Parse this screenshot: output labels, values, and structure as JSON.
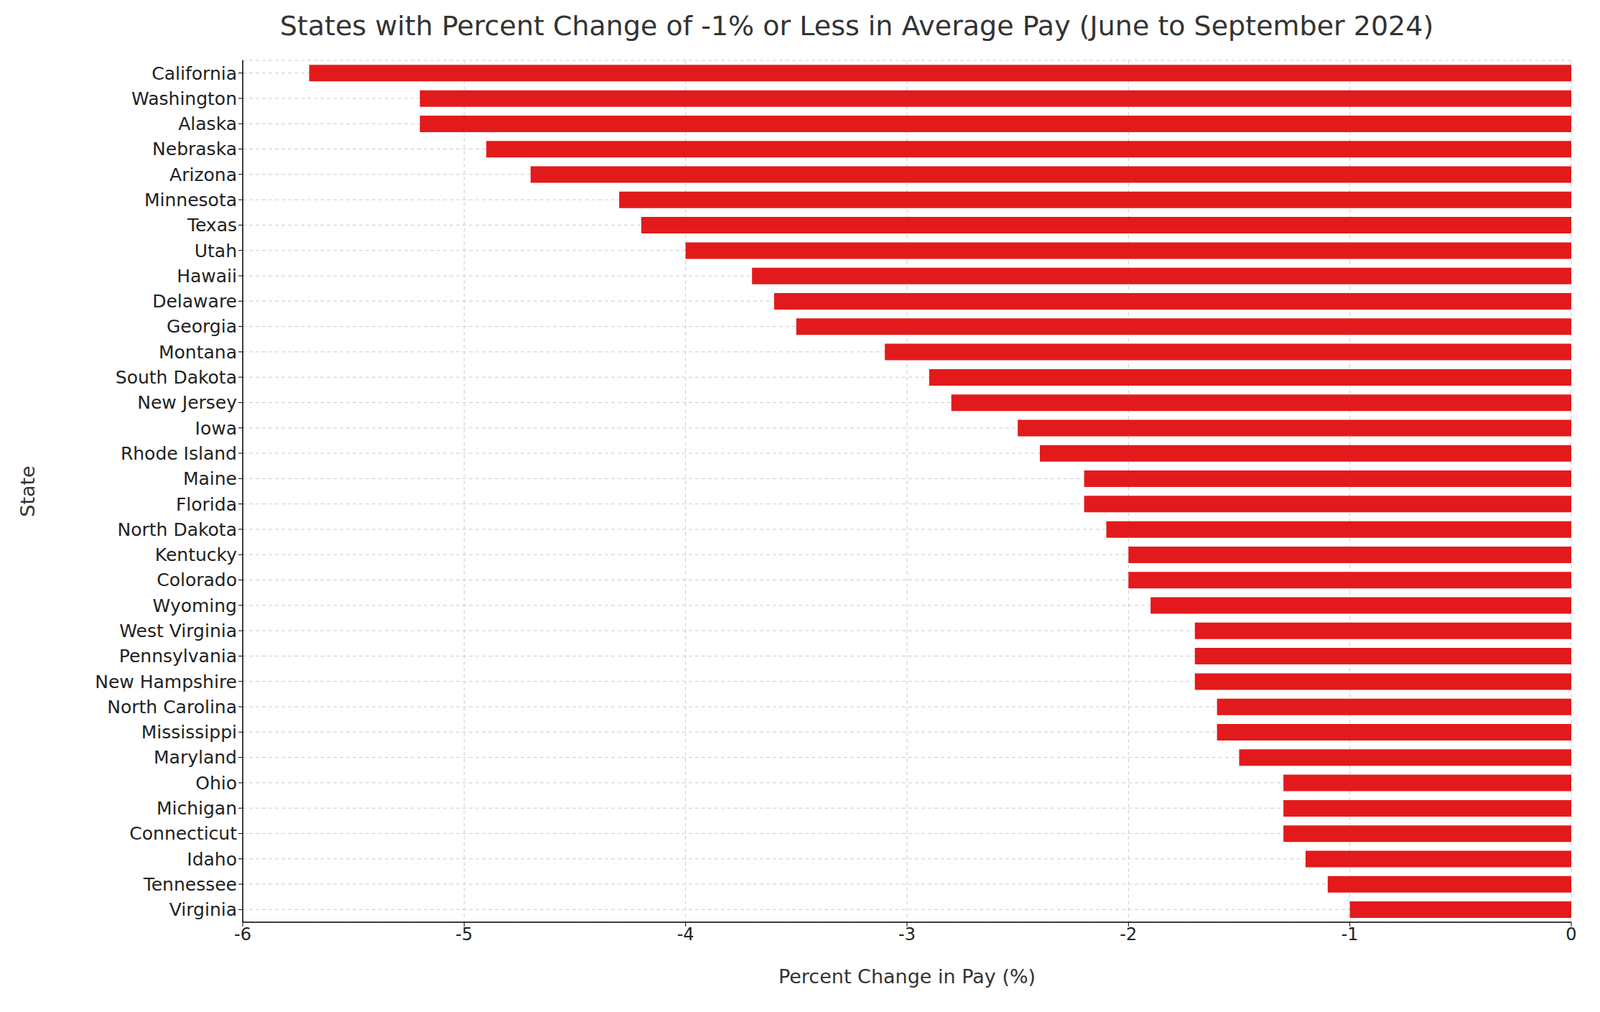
{
  "chart_data": {
    "type": "bar",
    "orientation": "horizontal",
    "title": "States with Percent Change of -1% or Less in Average Pay (June to September 2024)",
    "x_label": "Percent Change in Pay (%)",
    "y_label": "State",
    "categories": [
      "California",
      "Washington",
      "Alaska",
      "Nebraska",
      "Arizona",
      "Minnesota",
      "Texas",
      "Utah",
      "Hawaii",
      "Delaware",
      "Georgia",
      "Montana",
      "South Dakota",
      "New Jersey",
      "Iowa",
      "Rhode Island",
      "Maine",
      "Florida",
      "North Dakota",
      "Kentucky",
      "Colorado",
      "Wyoming",
      "West Virginia",
      "Pennsylvania",
      "New Hampshire",
      "North Carolina",
      "Mississippi",
      "Maryland",
      "Ohio",
      "Michigan",
      "Connecticut",
      "Idaho",
      "Tennessee",
      "Virginia"
    ],
    "values": [
      -5.7,
      -5.2,
      -5.2,
      -4.9,
      -4.7,
      -4.3,
      -4.2,
      -4.0,
      -3.7,
      -3.6,
      -3.5,
      -3.1,
      -2.9,
      -2.8,
      -2.5,
      -2.4,
      -2.2,
      -2.2,
      -2.1,
      -2.0,
      -2.0,
      -1.9,
      -1.7,
      -1.7,
      -1.7,
      -1.6,
      -1.6,
      -1.5,
      -1.3,
      -1.3,
      -1.3,
      -1.2,
      -1.1,
      -1.0
    ],
    "color": "#e31a1c",
    "xlim": [
      -6,
      0
    ],
    "xticks": [
      -6,
      -5,
      -4,
      -3,
      -2,
      -1,
      0
    ],
    "grid": true
  }
}
